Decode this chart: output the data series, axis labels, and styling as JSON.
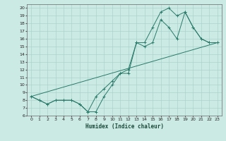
{
  "xlabel": "Humidex (Indice chaleur)",
  "background_color": "#cceae4",
  "grid_color": "#aad4cc",
  "line_color": "#2a7a6a",
  "xlim": [
    -0.5,
    23.5
  ],
  "ylim": [
    6,
    20.5
  ],
  "xticks": [
    0,
    1,
    2,
    3,
    4,
    5,
    6,
    7,
    8,
    9,
    10,
    11,
    12,
    13,
    14,
    15,
    16,
    17,
    18,
    19,
    20,
    21,
    22,
    23
  ],
  "yticks": [
    6,
    7,
    8,
    9,
    10,
    11,
    12,
    13,
    14,
    15,
    16,
    17,
    18,
    19,
    20
  ],
  "line1_x": [
    0,
    1,
    2,
    3,
    4,
    5,
    6,
    7,
    8,
    9,
    10,
    11,
    12,
    13,
    14,
    15,
    16,
    17,
    18,
    19,
    20,
    21,
    22,
    23
  ],
  "line1_y": [
    8.5,
    8.0,
    7.5,
    8.0,
    8.0,
    8.0,
    7.5,
    6.5,
    8.5,
    9.5,
    10.5,
    11.5,
    12.0,
    15.5,
    15.5,
    17.5,
    19.5,
    20.0,
    19.0,
    19.5,
    17.5,
    16.0,
    15.5,
    15.5
  ],
  "line2_x": [
    0,
    1,
    2,
    3,
    4,
    5,
    6,
    7,
    8,
    9,
    10,
    11,
    12,
    13,
    14,
    15,
    16,
    17,
    18,
    19,
    20,
    21,
    22,
    23
  ],
  "line2_y": [
    8.5,
    8.0,
    7.5,
    8.0,
    8.0,
    8.0,
    7.5,
    6.5,
    6.5,
    8.5,
    10.0,
    11.5,
    11.5,
    15.5,
    15.0,
    15.5,
    18.5,
    17.5,
    16.0,
    19.5,
    17.5,
    16.0,
    15.5,
    15.5
  ],
  "line3_x": [
    0,
    23
  ],
  "line3_y": [
    8.5,
    15.5
  ]
}
